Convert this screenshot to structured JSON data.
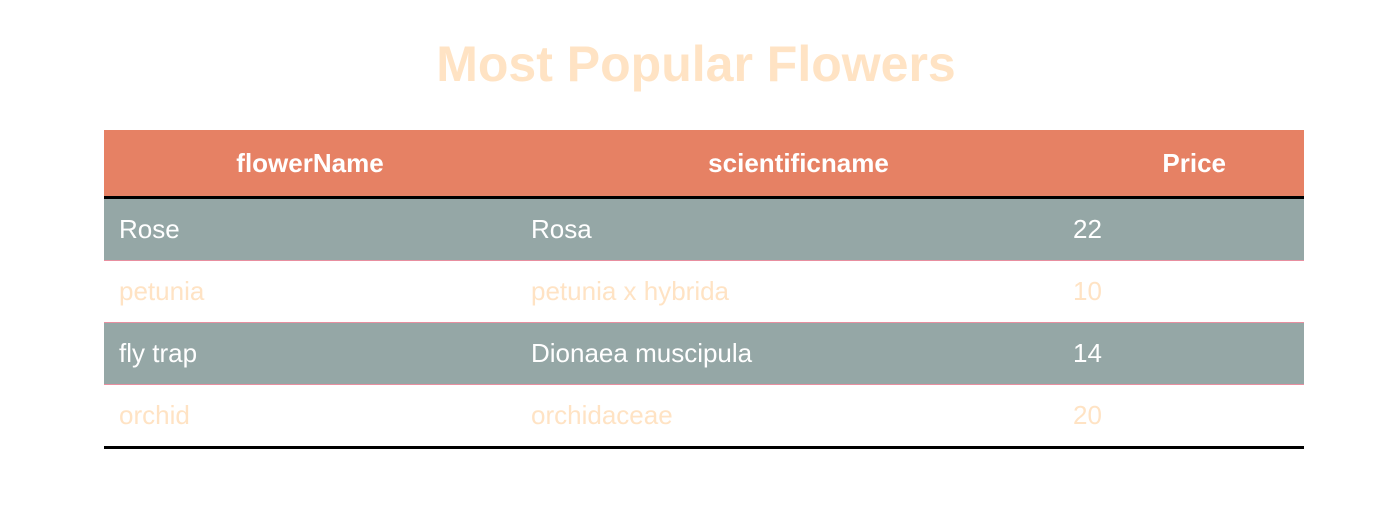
{
  "title": "Most Popular Flowers",
  "table": {
    "headers": [
      "flowerName",
      "scientificname",
      "Price"
    ],
    "rows": [
      {
        "flowerName": "Rose",
        "scientificname": "Rosa",
        "Price": "22"
      },
      {
        "flowerName": "petunia",
        "scientificname": "petunia x hybrida",
        "Price": "10"
      },
      {
        "flowerName": "fly trap",
        "scientificname": "Dionaea muscipula",
        "Price": "14"
      },
      {
        "flowerName": "orchid",
        "scientificname": "orchidaceae",
        "Price": "20"
      }
    ]
  },
  "colors": {
    "title": "#ffe3c4",
    "header_bg": "#e68164",
    "row_dark_bg": "#95a7a6",
    "row_light_text": "#ffe3c4",
    "row_divider": "#e88fa0"
  }
}
